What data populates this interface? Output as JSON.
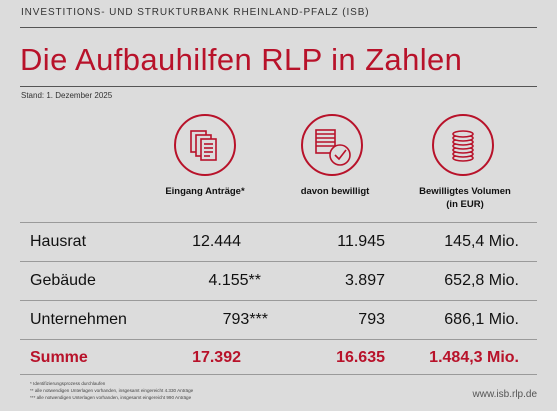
{
  "header": {
    "org": "INVESTITIONS- UND STRUKTURBANK RHEINLAND-PFALZ (ISB)",
    "title": "Die Aufbauhilfen RLP in Zahlen",
    "stand": "Stand: 1. Dezember 2025"
  },
  "columns": {
    "col1": "Eingang Anträge*",
    "col2": "davon bewilligt",
    "col3_line1": "Bewilligtes Volumen",
    "col3_line2": "(in EUR)"
  },
  "icons": {
    "col1": "documents-icon",
    "col2": "approved-documents-icon",
    "col3": "coin-stack-icon"
  },
  "rows": [
    {
      "label": "Hausrat",
      "antraege": "12.444",
      "bewilligt": "11.945",
      "volumen": "145,4 Mio."
    },
    {
      "label": "Gebäude",
      "antraege": "4.155**",
      "bewilligt": "3.897",
      "volumen": "652,8 Mio."
    },
    {
      "label": "Unternehmen",
      "antraege": "793***",
      "bewilligt": "793",
      "volumen": "686,1 Mio."
    },
    {
      "label": "Summe",
      "antraege": "17.392",
      "bewilligt": "16.635",
      "volumen": "1.484,3 Mio."
    }
  ],
  "footnotes": [
    "* Identifizierungsprozess durchlaufen",
    "** alle notwendigen Unterlagen vorhanden, insgesamt eingereicht 4.330 Anträge",
    "*** alle notwendigen Unterlagen vorhanden, insgesamt eingereicht 990 Anträge"
  ],
  "url": "www.isb.rlp.de",
  "colors": {
    "accent": "#b8122a",
    "background": "#dcdcdc"
  }
}
